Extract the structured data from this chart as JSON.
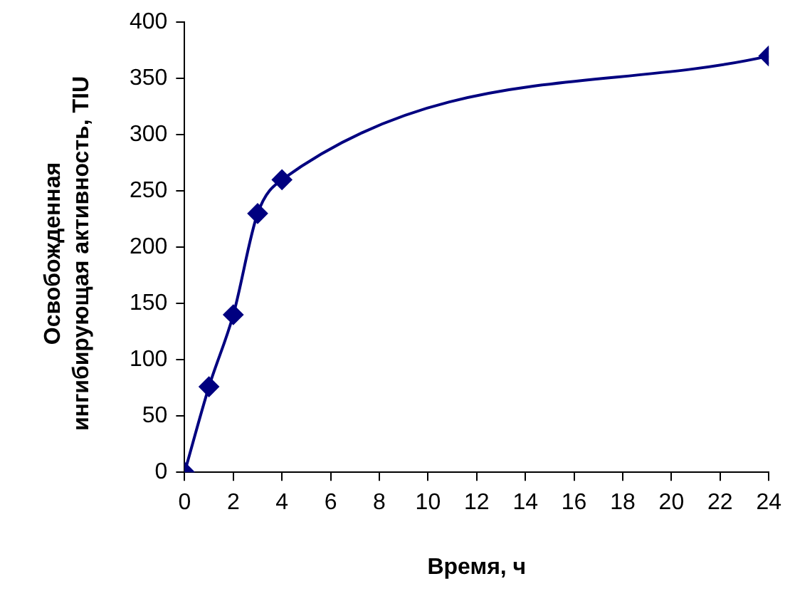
{
  "chart_data": {
    "type": "line",
    "xlabel": "Время, ч",
    "ylabel": "Освобожденная ингибирующая активность, TIU",
    "x": [
      0,
      1,
      2,
      3,
      4,
      24
    ],
    "series": [
      {
        "color": "#000080",
        "values": [
          0,
          76,
          140,
          230,
          260,
          370
        ]
      }
    ],
    "xlim": [
      0,
      24
    ],
    "xticks": [
      0,
      2,
      4,
      6,
      8,
      10,
      12,
      14,
      16,
      18,
      20,
      22,
      24
    ],
    "ylim": [
      0,
      400
    ],
    "yticks": [
      0,
      50,
      100,
      150,
      200,
      250,
      300,
      350,
      400
    ],
    "marker": "diamond",
    "line_style": "solid"
  }
}
